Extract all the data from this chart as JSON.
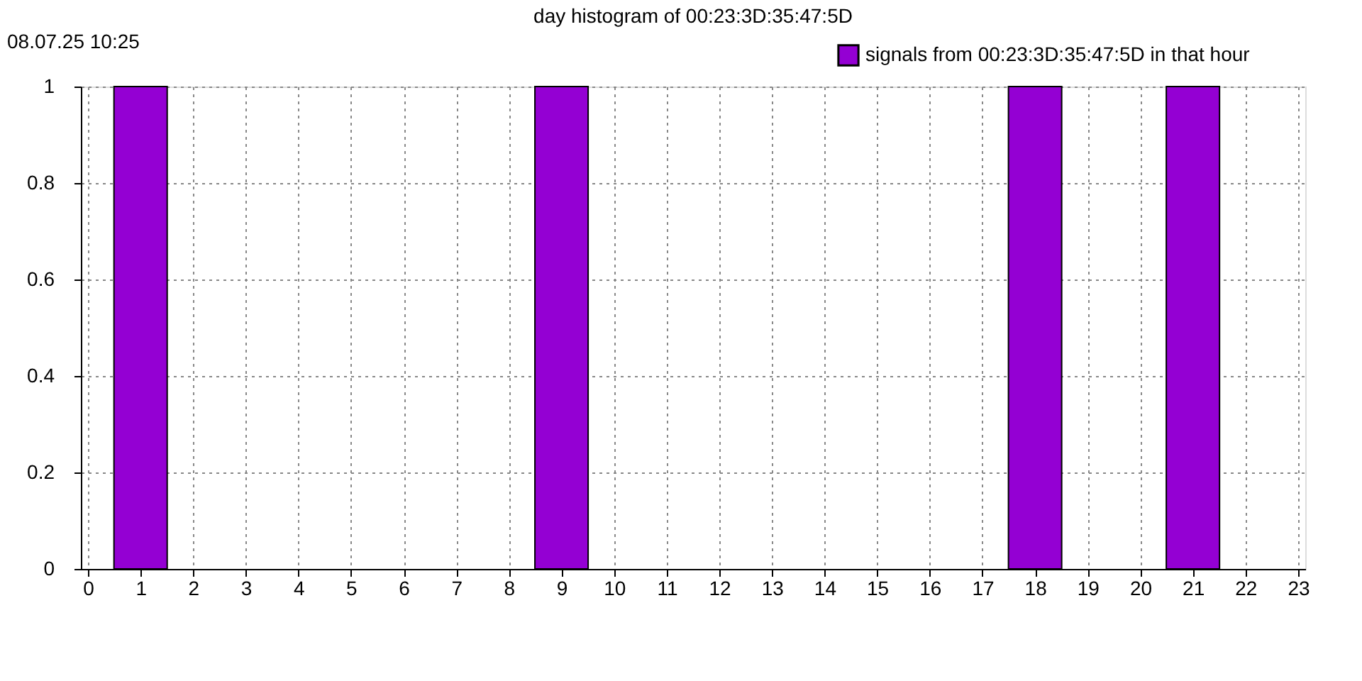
{
  "chart_data": {
    "type": "bar",
    "title": "day histogram of 00:23:3D:35:47:5D",
    "annotations": [
      "08.07.25 10:25"
    ],
    "x": [
      1,
      9,
      18,
      21
    ],
    "series": [
      {
        "name": "signals from 00:23:3D:35:47:5D in that hour",
        "color": "#9400d3",
        "values": [
          1,
          1,
          1,
          1
        ]
      }
    ],
    "xlim": [
      0,
      23
    ],
    "xticks": [
      0,
      1,
      2,
      3,
      4,
      5,
      6,
      7,
      8,
      9,
      10,
      11,
      12,
      13,
      14,
      15,
      16,
      17,
      18,
      19,
      20,
      21,
      22,
      23
    ],
    "ylim": [
      0,
      1
    ],
    "yticks": [
      0,
      0.2,
      0.4,
      0.6,
      0.8,
      1
    ],
    "grid": true,
    "legend": "top right"
  }
}
